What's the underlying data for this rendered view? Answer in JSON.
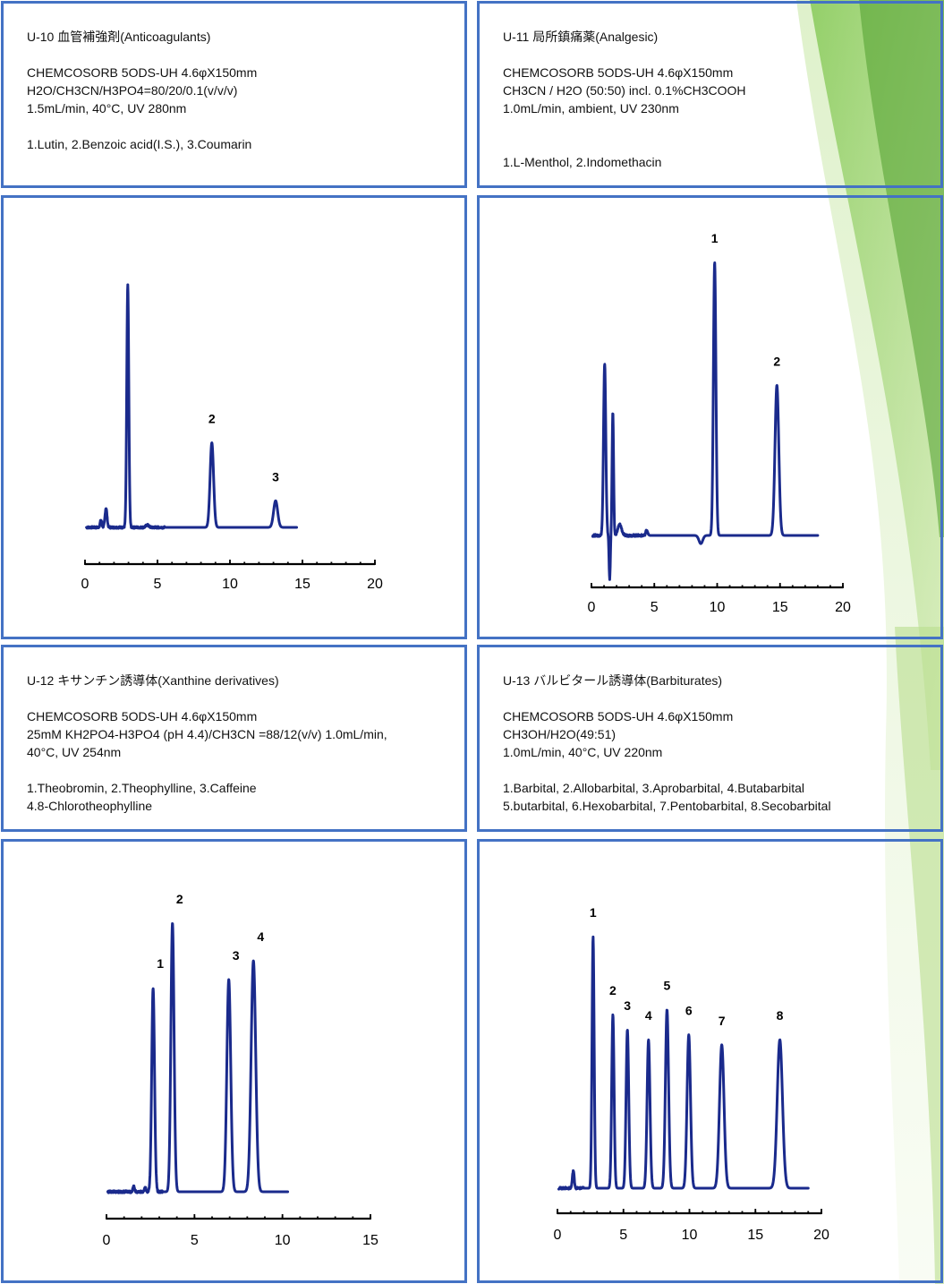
{
  "panels": [
    {
      "id": "U-10",
      "title": "U-10 血管補強剤(Anticoagulants)",
      "column": "CHEMCOSORB 5ODS-UH 4.6φX150mm",
      "conditions": [
        "H2O/CH3CN/H3PO4=80/20/0.1(v/v/v)",
        "1.5mL/min, 40°C, UV 280nm"
      ],
      "compounds": [
        "1.Lutin, 2.Benzoic acid(I.S.), 3.Coumarin"
      ]
    },
    {
      "id": "U-11",
      "title": "U-11 局所鎮痛薬(Analgesic)",
      "column": "CHEMCOSORB 5ODS-UH 4.6φX150mm",
      "conditions": [
        "CH3CN / H2O (50:50) incl. 0.1%CH3COOH",
        "1.0mL/min, ambient, UV 230nm",
        ""
      ],
      "compounds": [
        "1.L-Menthol, 2.Indomethacin"
      ]
    },
    {
      "id": "U-12",
      "title": "U-12 キサンチン誘導体(Xanthine derivatives)",
      "column": "CHEMCOSORB 5ODS-UH 4.6φX150mm",
      "conditions": [
        "25mM KH2PO4-H3PO4 (pH 4.4)/CH3CN =88/12(v/v) 1.0mL/min,",
        "40°C, UV 254nm"
      ],
      "compounds": [
        "1.Theobromin, 2.Theophylline, 3.Caffeine",
        "4.8-Chlorotheophylline"
      ]
    },
    {
      "id": "U-13",
      "title": "U-13 バルビタール誘導体(Barbiturates)",
      "column": "CHEMCOSORB 5ODS-UH 4.6φX150mm",
      "conditions": [
        "CH3OH/H2O(49:51)",
        "1.0mL/min, 40°C, UV 220nm"
      ],
      "compounds": [
        "1.Barbital, 2.Allobarbital, 3.Aprobarbital, 4.Butabarbital",
        "5.butarbital, 6.Hexobarbital, 7.Pentobarbital, 8.Secobarbital"
      ]
    }
  ],
  "colors": {
    "panel_border": "#4472c4",
    "trace": "#1a2a8c",
    "axis": "#000000"
  },
  "chart_data": [
    {
      "id": "U-10",
      "type": "line",
      "xlabel": "",
      "ylabel": "",
      "xlim": [
        0,
        20
      ],
      "ylim": [
        0,
        100
      ],
      "xticks": [
        0,
        5,
        10,
        15,
        20
      ],
      "x_end": 14.6,
      "noise_until": 5.5,
      "peaks": [
        {
          "rt": 1.1,
          "height": 3,
          "width": 0.06,
          "label": ""
        },
        {
          "rt": 1.45,
          "height": 8,
          "width": 0.07,
          "label": ""
        },
        {
          "rt": 2.95,
          "height": 100,
          "width": 0.07,
          "label": ""
        },
        {
          "rt": 4.3,
          "height": 1,
          "width": 0.1,
          "label": ""
        },
        {
          "rt": 8.75,
          "height": 35,
          "width": 0.12,
          "label": "2"
        },
        {
          "rt": 13.15,
          "height": 11,
          "width": 0.14,
          "label": "3"
        }
      ]
    },
    {
      "id": "U-11",
      "type": "line",
      "xlabel": "",
      "ylabel": "",
      "xlim": [
        0,
        20
      ],
      "ylim": [
        -16,
        100
      ],
      "xticks": [
        0,
        5,
        10,
        15,
        20
      ],
      "x_end": 18,
      "noise_until": 4.5,
      "peaks": [
        {
          "rt": 1.05,
          "height": 63,
          "width": 0.09,
          "label": ""
        },
        {
          "rt": 1.45,
          "height": -16,
          "width": 0.05,
          "label": ""
        },
        {
          "rt": 1.7,
          "height": 45,
          "width": 0.06,
          "label": ""
        },
        {
          "rt": 2.25,
          "height": 4,
          "width": 0.15,
          "label": ""
        },
        {
          "rt": 4.4,
          "height": 2,
          "width": 0.08,
          "label": ""
        },
        {
          "rt": 8.7,
          "height": -3,
          "width": 0.15,
          "label": ""
        },
        {
          "rt": 9.8,
          "height": 100,
          "width": 0.1,
          "label": "1"
        },
        {
          "rt": 14.75,
          "height": 55,
          "width": 0.15,
          "label": "2"
        }
      ]
    },
    {
      "id": "U-12",
      "type": "line",
      "xlabel": "",
      "ylabel": "",
      "xlim": [
        0,
        15
      ],
      "ylim": [
        0,
        100
      ],
      "xticks": [
        0,
        5,
        10,
        15
      ],
      "x_end": 10.3,
      "noise_until": 3.2,
      "peaks": [
        {
          "rt": 1.55,
          "height": 2,
          "width": 0.05,
          "label": ""
        },
        {
          "rt": 2.2,
          "height": 1.5,
          "width": 0.05,
          "label": ""
        },
        {
          "rt": 2.65,
          "height": 76,
          "width": 0.08,
          "label": "1"
        },
        {
          "rt": 3.75,
          "height": 100,
          "width": 0.09,
          "label": "2"
        },
        {
          "rt": 6.95,
          "height": 79,
          "width": 0.11,
          "label": "3"
        },
        {
          "rt": 8.35,
          "height": 86,
          "width": 0.13,
          "label": "4"
        }
      ]
    },
    {
      "id": "U-13",
      "type": "line",
      "xlabel": "",
      "ylabel": "",
      "xlim": [
        0,
        20
      ],
      "ylim": [
        0,
        100
      ],
      "xticks": [
        0,
        5,
        10,
        15,
        20
      ],
      "x_end": 19,
      "noise_until": 2,
      "peaks": [
        {
          "rt": 1.2,
          "height": 7,
          "width": 0.07,
          "label": ""
        },
        {
          "rt": 2.7,
          "height": 100,
          "width": 0.08,
          "label": "1"
        },
        {
          "rt": 4.2,
          "height": 69,
          "width": 0.09,
          "label": "2"
        },
        {
          "rt": 5.3,
          "height": 63,
          "width": 0.1,
          "label": "3"
        },
        {
          "rt": 6.9,
          "height": 59,
          "width": 0.11,
          "label": "4"
        },
        {
          "rt": 8.3,
          "height": 71,
          "width": 0.12,
          "label": "5"
        },
        {
          "rt": 9.95,
          "height": 61,
          "width": 0.13,
          "label": "6"
        },
        {
          "rt": 12.45,
          "height": 57,
          "width": 0.17,
          "label": "7"
        },
        {
          "rt": 16.85,
          "height": 59,
          "width": 0.2,
          "label": "8"
        }
      ]
    }
  ]
}
